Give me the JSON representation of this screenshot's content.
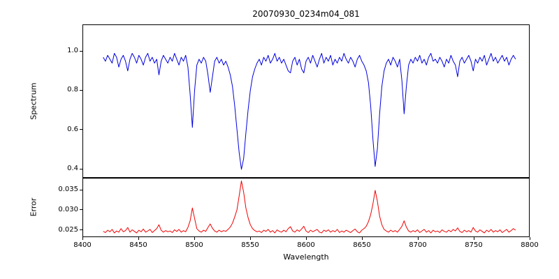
{
  "figure": {
    "background_color": "#ffffff",
    "frame_color": "#000000"
  },
  "chart_data": {
    "type": "line",
    "title": "20070930_0234m04_081",
    "xlabel": "Wavelength",
    "grid": false,
    "legend": "none",
    "xlim": [
      8400,
      8800
    ],
    "x_ticks": [
      8400,
      8450,
      8500,
      8550,
      8600,
      8650,
      8700,
      8750,
      8800
    ],
    "x_start": 8418,
    "x_step": 2,
    "notable_features": [
      {
        "wavelength": 8498,
        "spectrum_min": 0.61,
        "error_peak": 0.0305
      },
      {
        "wavelength": 8542,
        "spectrum_min": 0.39,
        "error_peak": 0.0375
      },
      {
        "wavelength": 8662,
        "spectrum_min": 0.41,
        "error_peak": 0.035
      },
      {
        "wavelength": 8688,
        "spectrum_min": 0.68,
        "error_peak": 0.0272
      }
    ],
    "panels": [
      {
        "ylabel": "Spectrum",
        "color": "#0000dd",
        "ylim": [
          0.355,
          1.135
        ],
        "y_ticks": [
          0.4,
          0.6,
          0.8,
          1.0
        ],
        "tick_decimals": 1,
        "values": [
          0.97,
          0.95,
          0.98,
          0.96,
          0.94,
          0.99,
          0.97,
          0.92,
          0.96,
          0.98,
          0.95,
          0.9,
          0.96,
          0.99,
          0.97,
          0.94,
          0.98,
          0.96,
          0.93,
          0.97,
          0.99,
          0.95,
          0.97,
          0.94,
          0.96,
          0.88,
          0.95,
          0.98,
          0.96,
          0.94,
          0.97,
          0.95,
          0.99,
          0.96,
          0.93,
          0.97,
          0.95,
          0.98,
          0.92,
          0.78,
          0.61,
          0.8,
          0.93,
          0.96,
          0.94,
          0.97,
          0.95,
          0.88,
          0.79,
          0.87,
          0.95,
          0.97,
          0.94,
          0.96,
          0.93,
          0.95,
          0.92,
          0.88,
          0.82,
          0.72,
          0.6,
          0.48,
          0.395,
          0.45,
          0.58,
          0.7,
          0.8,
          0.87,
          0.91,
          0.94,
          0.96,
          0.93,
          0.97,
          0.95,
          0.98,
          0.94,
          0.96,
          0.99,
          0.95,
          0.97,
          0.94,
          0.96,
          0.93,
          0.9,
          0.89,
          0.95,
          0.97,
          0.93,
          0.96,
          0.91,
          0.89,
          0.95,
          0.97,
          0.94,
          0.98,
          0.95,
          0.92,
          0.96,
          0.99,
          0.94,
          0.97,
          0.95,
          0.98,
          0.93,
          0.96,
          0.94,
          0.97,
          0.95,
          0.99,
          0.96,
          0.94,
          0.97,
          0.95,
          0.92,
          0.96,
          0.98,
          0.95,
          0.93,
          0.9,
          0.84,
          0.72,
          0.55,
          0.41,
          0.5,
          0.68,
          0.82,
          0.9,
          0.94,
          0.96,
          0.93,
          0.97,
          0.95,
          0.92,
          0.96,
          0.85,
          0.68,
          0.82,
          0.93,
          0.96,
          0.94,
          0.97,
          0.95,
          0.98,
          0.94,
          0.96,
          0.93,
          0.97,
          0.99,
          0.95,
          0.96,
          0.94,
          0.97,
          0.95,
          0.92,
          0.96,
          0.94,
          0.98,
          0.95,
          0.93,
          0.87,
          0.95,
          0.97,
          0.94,
          0.96,
          0.98,
          0.95,
          0.9,
          0.96,
          0.94,
          0.97,
          0.95,
          0.98,
          0.93,
          0.96,
          0.99,
          0.95,
          0.97,
          0.94,
          0.96,
          0.98,
          0.95,
          0.97,
          0.93,
          0.96,
          0.98,
          0.96
        ]
      },
      {
        "ylabel": "Error",
        "color": "#ee0000",
        "ylim": [
          0.0232,
          0.038
        ],
        "y_ticks": [
          0.025,
          0.03,
          0.035
        ],
        "tick_decimals": 3,
        "values": [
          0.0245,
          0.0242,
          0.0248,
          0.0244,
          0.025,
          0.0241,
          0.0246,
          0.0243,
          0.0252,
          0.0244,
          0.0247,
          0.0255,
          0.0243,
          0.0249,
          0.0245,
          0.0241,
          0.0248,
          0.0244,
          0.0251,
          0.0243,
          0.0246,
          0.025,
          0.0242,
          0.0247,
          0.0252,
          0.0262,
          0.0248,
          0.0243,
          0.0247,
          0.0244,
          0.0246,
          0.0242,
          0.0249,
          0.0245,
          0.025,
          0.0243,
          0.0247,
          0.0244,
          0.0255,
          0.0272,
          0.0305,
          0.0278,
          0.0252,
          0.0246,
          0.0243,
          0.0248,
          0.0245,
          0.0255,
          0.0264,
          0.0253,
          0.0246,
          0.0243,
          0.0248,
          0.0244,
          0.0247,
          0.0245,
          0.025,
          0.0256,
          0.0266,
          0.0282,
          0.03,
          0.0336,
          0.0374,
          0.0345,
          0.0305,
          0.028,
          0.0262,
          0.0252,
          0.0247,
          0.0244,
          0.0246,
          0.0242,
          0.0248,
          0.0245,
          0.025,
          0.0243,
          0.0247,
          0.0241,
          0.0249,
          0.0245,
          0.0243,
          0.0248,
          0.0244,
          0.0252,
          0.0257,
          0.0246,
          0.0243,
          0.0249,
          0.0245,
          0.0251,
          0.0258,
          0.0246,
          0.0242,
          0.0248,
          0.0244,
          0.0247,
          0.025,
          0.0243,
          0.0241,
          0.0248,
          0.0245,
          0.0249,
          0.0243,
          0.0247,
          0.0244,
          0.025,
          0.0242,
          0.0246,
          0.0243,
          0.0248,
          0.0245,
          0.0242,
          0.0247,
          0.0251,
          0.0244,
          0.0241,
          0.0248,
          0.0252,
          0.0258,
          0.027,
          0.0288,
          0.0315,
          0.035,
          0.0322,
          0.0284,
          0.0262,
          0.025,
          0.0246,
          0.0243,
          0.0248,
          0.0244,
          0.0247,
          0.0243,
          0.025,
          0.0258,
          0.0272,
          0.0256,
          0.0246,
          0.0243,
          0.0247,
          0.0244,
          0.0249,
          0.0242,
          0.0246,
          0.025,
          0.0243,
          0.0247,
          0.0241,
          0.0248,
          0.0244,
          0.0246,
          0.0242,
          0.0249,
          0.0245,
          0.0243,
          0.0248,
          0.0244,
          0.025,
          0.0246,
          0.0254,
          0.0245,
          0.0242,
          0.0248,
          0.0244,
          0.0247,
          0.0243,
          0.0255,
          0.0246,
          0.0243,
          0.0249,
          0.0245,
          0.0241,
          0.0248,
          0.0244,
          0.025,
          0.0243,
          0.0247,
          0.0244,
          0.0249,
          0.0242,
          0.0246,
          0.025,
          0.0243,
          0.0247,
          0.0252,
          0.0248
        ]
      }
    ]
  }
}
